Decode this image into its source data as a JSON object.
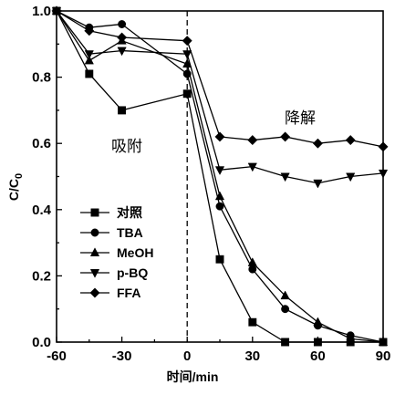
{
  "chart_data": {
    "type": "line",
    "xlabel": "时间/min",
    "ylabel_main": "C/C",
    "ylabel_sub": "0",
    "xlim": [
      -60,
      90
    ],
    "ylim": [
      0.0,
      1.0
    ],
    "xticks": [
      -60,
      -30,
      0,
      30,
      60,
      90
    ],
    "yticks": [
      0.0,
      0.2,
      0.4,
      0.6,
      0.8,
      1.0
    ],
    "xtick_labels": [
      "-60",
      "-30",
      "0",
      "30",
      "60",
      "90"
    ],
    "ytick_labels": [
      "0.0",
      "0.2",
      "0.4",
      "0.6",
      "0.8",
      "1.0"
    ],
    "annotations": [
      {
        "id": "adsorption",
        "text": "吸附"
      },
      {
        "id": "degradation",
        "text": "降解"
      }
    ],
    "vertical_divider_x": 0,
    "legend_position": "lower-left",
    "series": [
      {
        "name": "对照",
        "marker": "square",
        "x": [
          -60,
          -45,
          -30,
          0,
          15,
          30,
          45,
          60,
          75,
          90
        ],
        "y": [
          1.0,
          0.81,
          0.7,
          0.75,
          0.25,
          0.06,
          0.0,
          0.0,
          0.0,
          0.0
        ]
      },
      {
        "name": "TBA",
        "marker": "circle",
        "x": [
          -60,
          -45,
          -30,
          0,
          15,
          30,
          45,
          60,
          75,
          90
        ],
        "y": [
          1.0,
          0.95,
          0.96,
          0.81,
          0.41,
          0.22,
          0.1,
          0.05,
          0.02,
          0.0
        ]
      },
      {
        "name": "MeOH",
        "marker": "triangle-up",
        "x": [
          -60,
          -45,
          -30,
          0,
          15,
          30,
          45,
          60,
          75,
          90
        ],
        "y": [
          1.0,
          0.85,
          0.91,
          0.84,
          0.44,
          0.24,
          0.14,
          0.06,
          0.01,
          0.0
        ]
      },
      {
        "name": "p-BQ",
        "marker": "triangle-down",
        "x": [
          -60,
          -45,
          -30,
          0,
          15,
          30,
          45,
          60,
          75,
          90
        ],
        "y": [
          1.0,
          0.87,
          0.88,
          0.87,
          0.52,
          0.53,
          0.5,
          0.48,
          0.5,
          0.51
        ]
      },
      {
        "name": "FFA",
        "marker": "diamond",
        "x": [
          -60,
          -45,
          -30,
          0,
          15,
          30,
          45,
          60,
          75,
          90
        ],
        "y": [
          1.0,
          0.94,
          0.92,
          0.91,
          0.62,
          0.61,
          0.62,
          0.6,
          0.61,
          0.59
        ]
      }
    ]
  }
}
